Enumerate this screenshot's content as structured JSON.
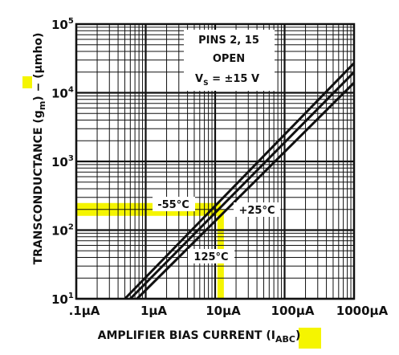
{
  "chart_data": {
    "type": "line",
    "x_scale": "log",
    "y_scale": "log",
    "xlim": [
      0.1,
      1000
    ],
    "ylim": [
      10,
      100000
    ],
    "grid": true,
    "xlabel": "AMPLIFIER BIAS CURRENT (I",
    "xlabel_sub": "ABC",
    "xlabel_end": ")",
    "ylabel": "TRANSCONDUCTANCE (g",
    "ylabel_sub": "m",
    "ylabel_end": ") − (μmho)",
    "x_ticks": [
      {
        "value": 0.1,
        "label": ".1μA"
      },
      {
        "value": 1,
        "label": "1μA"
      },
      {
        "value": 10,
        "label": "10μA"
      },
      {
        "value": 100,
        "label": "100μA"
      },
      {
        "value": 1000,
        "label": "1000μA"
      }
    ],
    "y_ticks": [
      {
        "value": 10,
        "base": "10",
        "exp": "1"
      },
      {
        "value": 100,
        "base": "10",
        "exp": "2"
      },
      {
        "value": 1000,
        "base": "10",
        "exp": "3"
      },
      {
        "value": 10000,
        "base": "10",
        "exp": "4"
      },
      {
        "value": 100000,
        "base": "10",
        "exp": "5"
      }
    ],
    "series": [
      {
        "name": "-55°C",
        "x": [
          0.5,
          1000
        ],
        "y": [
          10,
          27000
        ]
      },
      {
        "name": "+25°C",
        "x": [
          0.6,
          1000
        ],
        "y": [
          10,
          20000
        ]
      },
      {
        "name": "125°C",
        "x": [
          0.75,
          1000
        ],
        "y": [
          10,
          14000
        ]
      }
    ],
    "annotations": {
      "box_line1": "PINS 2, 15",
      "box_line2": "OPEN",
      "box_line3": "V",
      "box_line3_sub": "S",
      "box_line3_end": " = ±15 V"
    },
    "highlight_color": "#f5f500",
    "highlight_point": {
      "x": 12,
      "y": 200
    }
  }
}
